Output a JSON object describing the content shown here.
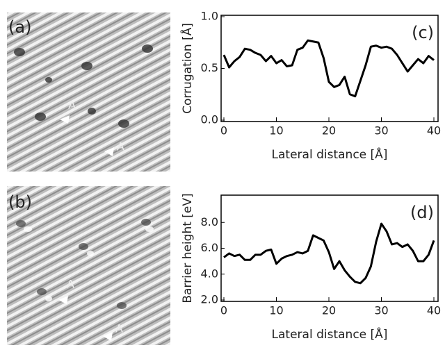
{
  "images": [
    {
      "label": "(a)",
      "markers": [
        "A",
        "A′"
      ]
    },
    {
      "label": "(b)",
      "markers": [
        "A",
        "A′"
      ]
    }
  ],
  "chart_data": [
    {
      "type": "line",
      "panel_label": "(c)",
      "xlabel": "Lateral distance [Å]",
      "ylabel": "Corrugation [Å]",
      "x": [
        0,
        1,
        2,
        3,
        4,
        5,
        6,
        7,
        8,
        9,
        10,
        11,
        12,
        13,
        14,
        15,
        16,
        17,
        18,
        19,
        20,
        21,
        22,
        23,
        24,
        25,
        26,
        27,
        28,
        29,
        30,
        31,
        32,
        33,
        34,
        35,
        36,
        37,
        38,
        39,
        40
      ],
      "series": [
        {
          "color": "#000000",
          "values": [
            0.63,
            0.51,
            0.57,
            0.61,
            0.69,
            0.68,
            0.65,
            0.63,
            0.57,
            0.62,
            0.55,
            0.58,
            0.52,
            0.53,
            0.68,
            0.7,
            0.77,
            0.76,
            0.75,
            0.6,
            0.37,
            0.32,
            0.34,
            0.42,
            0.25,
            0.23,
            0.38,
            0.53,
            0.71,
            0.72,
            0.7,
            0.71,
            0.69,
            0.63,
            0.55,
            0.47,
            0.53,
            0.59,
            0.55,
            0.62,
            0.58
          ]
        }
      ],
      "xlim": [
        0,
        40
      ],
      "ylim": [
        0,
        1
      ],
      "xticks": [
        0,
        10,
        20,
        30,
        40
      ],
      "yticks": [
        {
          "value": 0,
          "label": "0.0"
        },
        {
          "value": 0.5,
          "label": "0.5"
        },
        {
          "value": 1,
          "label": "1.0"
        }
      ]
    },
    {
      "type": "line",
      "panel_label": "(d)",
      "xlabel": "Lateral distance [Å]",
      "ylabel": "Barrier height [eV]",
      "x": [
        0,
        1,
        2,
        3,
        4,
        5,
        6,
        7,
        8,
        9,
        10,
        11,
        12,
        13,
        14,
        15,
        16,
        17,
        18,
        19,
        20,
        21,
        22,
        23,
        24,
        25,
        26,
        27,
        28,
        29,
        30,
        31,
        32,
        33,
        34,
        35,
        36,
        37,
        38,
        39,
        40
      ],
      "series": [
        {
          "color": "#000000",
          "values": [
            5.3,
            5.6,
            5.4,
            5.5,
            5.1,
            5.1,
            5.5,
            5.5,
            5.8,
            5.9,
            4.8,
            5.2,
            5.4,
            5.5,
            5.7,
            5.6,
            5.8,
            7.0,
            6.8,
            6.6,
            5.7,
            4.4,
            5.0,
            4.3,
            3.8,
            3.4,
            3.3,
            3.7,
            4.6,
            6.5,
            7.9,
            7.3,
            6.3,
            6.4,
            6.1,
            6.3,
            5.8,
            5.0,
            5.0,
            5.5,
            6.6
          ]
        }
      ],
      "xlim": [
        0,
        40
      ],
      "ylim": [
        2,
        10
      ],
      "xticks": [
        0,
        10,
        20,
        30,
        40
      ],
      "yticks": [
        {
          "value": 2,
          "label": "2.0"
        },
        {
          "value": 4,
          "label": "4.0"
        },
        {
          "value": 6,
          "label": "6.0"
        },
        {
          "value": 8,
          "label": "8.0"
        }
      ]
    }
  ]
}
